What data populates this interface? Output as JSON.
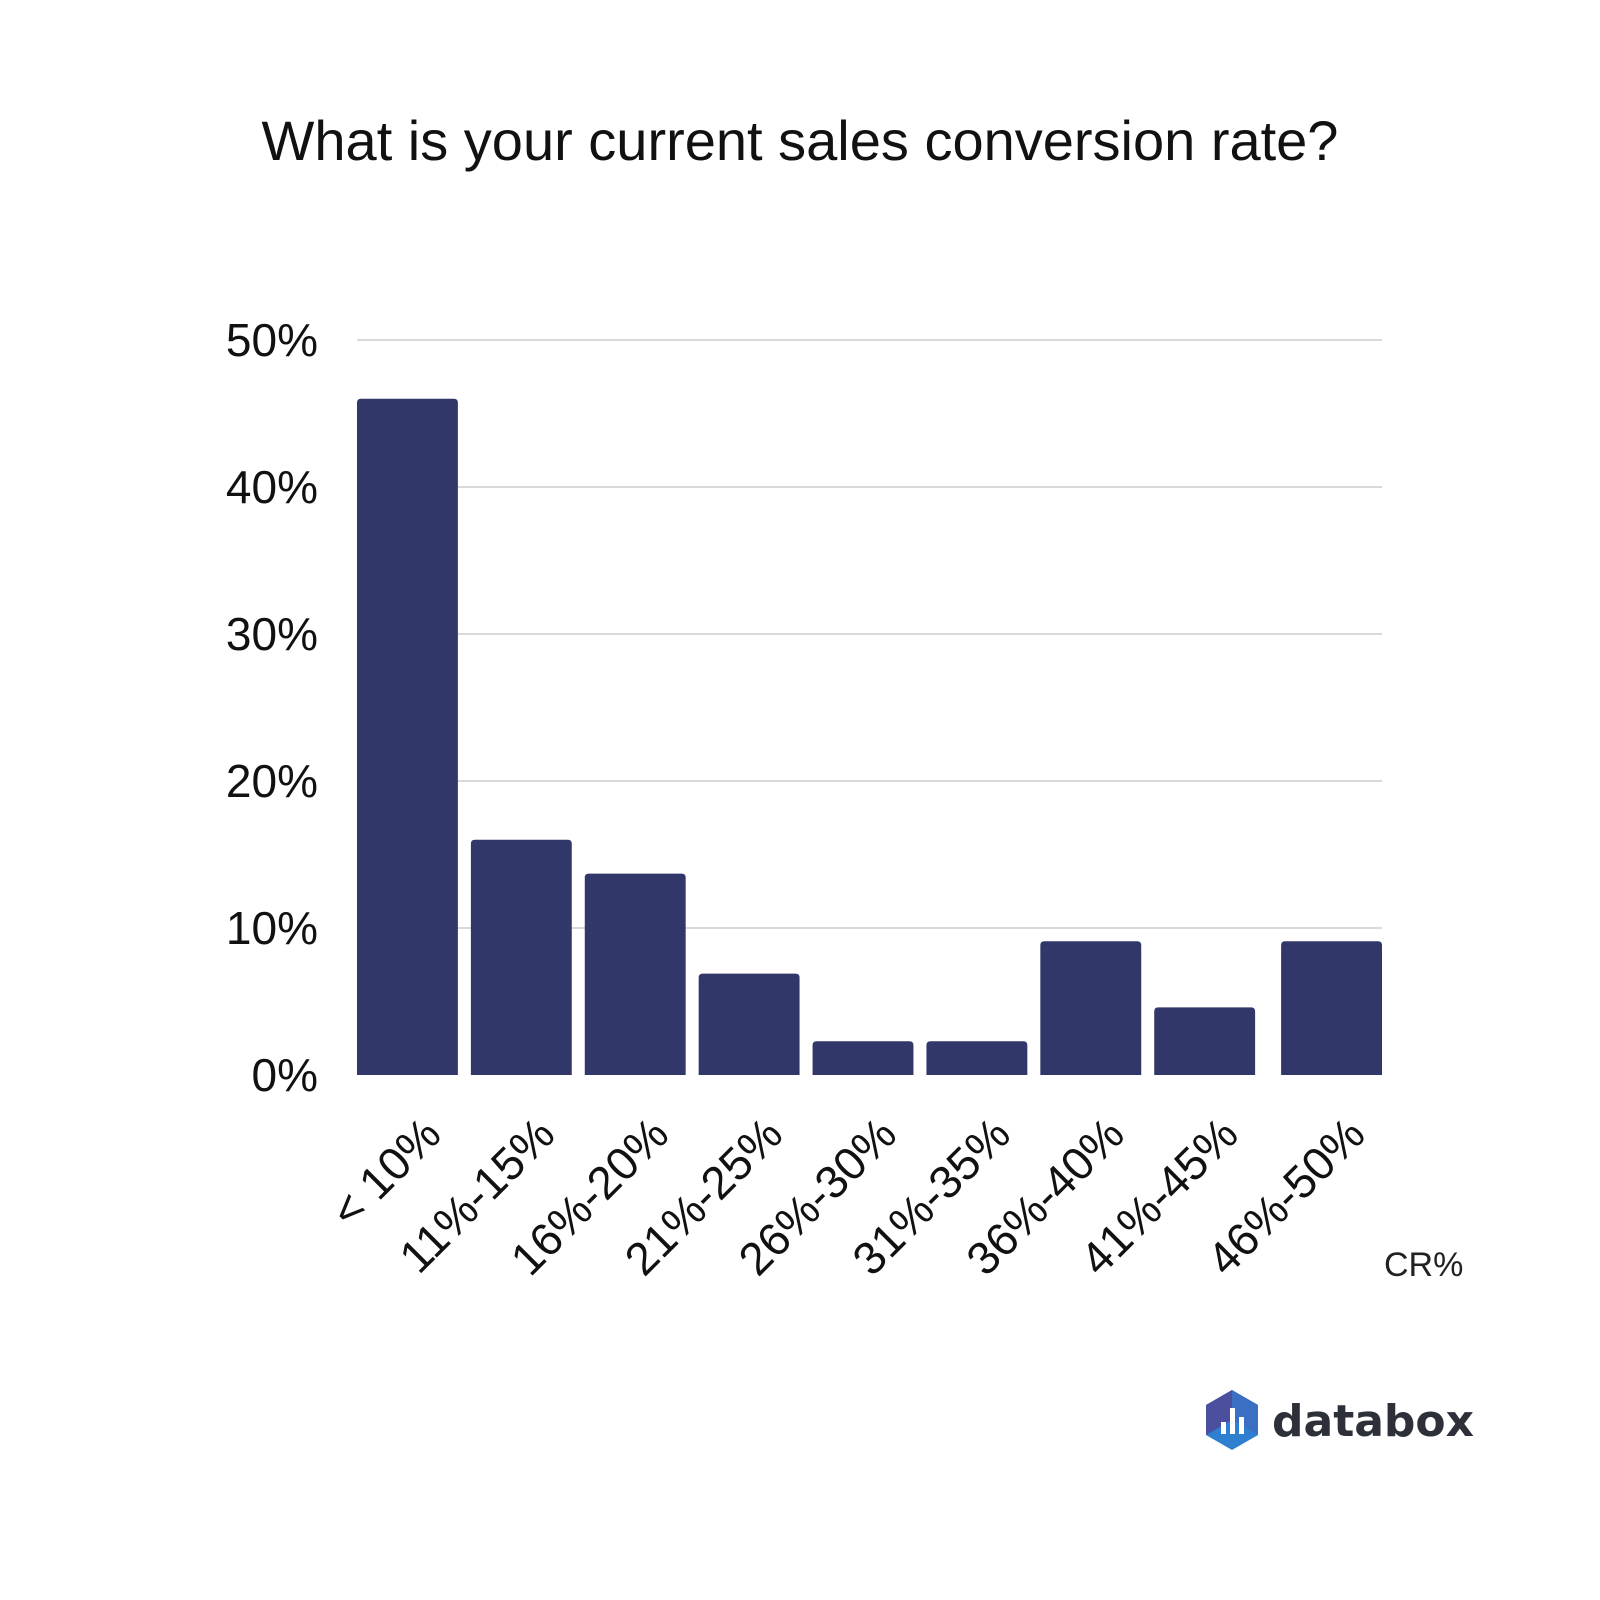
{
  "chart_data": {
    "type": "bar",
    "title": "What is your current sales conversion rate?",
    "xlabel": "CR%",
    "ylabel": "",
    "categories": [
      "< 10%",
      "11%-15%",
      "16%-20%",
      "21%-25%",
      "26%-30%",
      "31%-35%",
      "36%-40%",
      "41%-45%",
      "46%-50%"
    ],
    "values": [
      46,
      16,
      13.7,
      6.9,
      2.3,
      2.3,
      9.1,
      4.6,
      9.1
    ],
    "ylim": [
      0,
      50
    ],
    "yticks": [
      "0%",
      "10%",
      "20%",
      "30%",
      "40%",
      "50%"
    ],
    "grid": true,
    "bar_color": "#323769"
  },
  "brand": {
    "name": "databox",
    "icon": "databox-logo-icon"
  }
}
